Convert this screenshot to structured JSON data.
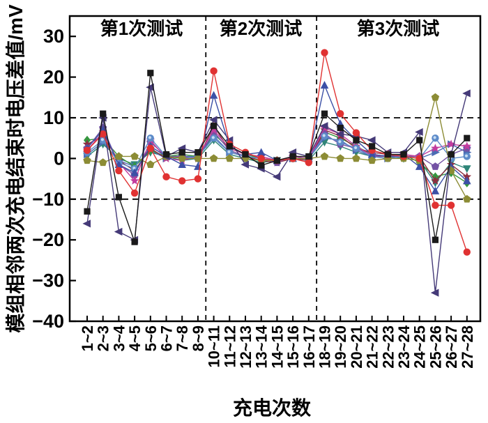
{
  "figure": {
    "background": "#ffffff",
    "frame_color": "#000000"
  },
  "chart_data": {
    "type": "line",
    "title": "",
    "xlabel": "充电次数",
    "ylabel": "模组相邻两次充电结束时电压差值/mV",
    "ylim": [
      -40,
      35
    ],
    "yticks": [
      30,
      20,
      10,
      0,
      -10,
      -20,
      -30,
      -40
    ],
    "grid": false,
    "legend_position": "none",
    "reference_lines_mv": [
      10,
      -10
    ],
    "categories": [
      "1~2",
      "2~3",
      "3~4",
      "4~5",
      "5~6",
      "6~7",
      "7~8",
      "8~9",
      "10~11",
      "11~12",
      "12~13",
      "13~14",
      "14~15",
      "15~16",
      "16~17",
      "18~19",
      "19~20",
      "20~21",
      "21~22",
      "22~23",
      "23~24",
      "24~25",
      "25~26",
      "26~27",
      "27~28"
    ],
    "region_labels": [
      {
        "label": "第1次测试",
        "start_index": 0,
        "end_index": 7
      },
      {
        "label": "第2次测试",
        "start_index": 8,
        "end_index": 14
      },
      {
        "label": "第3次测试",
        "start_index": 15,
        "end_index": 24
      }
    ],
    "series": [
      {
        "name": "teal-triangle-down",
        "marker": "triangle-down",
        "color": "#2f8578",
        "values": [
          0.5,
          3.5,
          0,
          -1.5,
          1.5,
          0.5,
          -0.5,
          0,
          4.5,
          1,
          0,
          -1,
          -0.5,
          0,
          -0.5,
          4,
          3,
          1.5,
          0.5,
          0.5,
          0,
          -0.5,
          -6,
          -1,
          -2.5
        ]
      },
      {
        "name": "royal-triangle-right",
        "marker": "triangle-right",
        "color": "#4c6cb3",
        "values": [
          1,
          4,
          -0.5,
          -2,
          2,
          0,
          0.5,
          0.5,
          5.5,
          1.5,
          0.5,
          -0.5,
          -0.5,
          0,
          0,
          5,
          4.5,
          2,
          0.5,
          0,
          0.5,
          0,
          1.5,
          3.5,
          1.5
        ]
      },
      {
        "name": "green-diamond",
        "marker": "diamond",
        "color": "#35963f",
        "values": [
          4.5,
          5,
          0.5,
          -2,
          2,
          0.5,
          1,
          0.5,
          6,
          2.5,
          1,
          0,
          -0.5,
          0.5,
          0,
          6.5,
          5,
          3,
          1,
          0.5,
          1,
          -1,
          -4.5,
          -3.5,
          -6
        ]
      },
      {
        "name": "wine-star",
        "marker": "star",
        "color": "#8e2e40",
        "values": [
          3.5,
          5.5,
          -0.5,
          -3,
          2.5,
          0,
          0.5,
          0,
          8,
          2,
          0.5,
          -0.5,
          -1,
          0,
          -0.5,
          7,
          5.5,
          2.5,
          1.5,
          1,
          0.5,
          0.5,
          -5.5,
          -1.5,
          -4.5
        ]
      },
      {
        "name": "purple-pentagon",
        "marker": "pentagon",
        "color": "#7452a4",
        "values": [
          2.5,
          7.5,
          -1.5,
          -4,
          4,
          0.5,
          0.5,
          0,
          6.5,
          2,
          0.5,
          0,
          -1,
          0.5,
          0,
          6,
          3.5,
          2.5,
          1,
          0.5,
          0.5,
          0.5,
          -2,
          1,
          2.5
        ]
      },
      {
        "name": "magenta-star",
        "marker": "star",
        "color": "#c23c9e",
        "values": [
          2,
          6.5,
          -1,
          -5.5,
          4.5,
          0,
          -0.5,
          0.5,
          7,
          2.5,
          1,
          0.5,
          -0.5,
          0.5,
          0,
          7.5,
          6,
          3,
          0.7,
          0.5,
          1,
          0.5,
          2.5,
          3.5,
          3
        ]
      },
      {
        "name": "sky-sphere",
        "marker": "sphere",
        "color": "#5d8bc9",
        "values": [
          1.5,
          4.5,
          -1,
          -2.5,
          5,
          0.5,
          0,
          0.5,
          5,
          1.5,
          0.5,
          0,
          -0.5,
          0,
          0,
          5.5,
          4,
          2.5,
          0.5,
          0,
          0.5,
          0,
          5,
          0,
          0.5
        ]
      },
      {
        "name": "blue-triangle-up",
        "marker": "triangle-up",
        "color": "#3c50a6",
        "values": [
          2.5,
          7,
          -1.5,
          -3.5,
          3,
          0.5,
          -1.5,
          -2,
          15.5,
          3,
          1,
          1.5,
          -0.5,
          0,
          0,
          18,
          8.5,
          4.5,
          1,
          0.5,
          1,
          -2,
          -8,
          -2,
          -5.5
        ]
      },
      {
        "name": "olive-pentagon",
        "marker": "pentagon",
        "color": "#8c8c35",
        "values": [
          -0.5,
          -1,
          0.5,
          0.5,
          -1.5,
          0.5,
          0,
          0,
          0,
          0,
          0,
          -0.5,
          -0.5,
          0,
          0,
          0.5,
          0,
          0,
          -0.5,
          0,
          0,
          -0.5,
          15,
          -3,
          -10
        ]
      },
      {
        "name": "navy-triangle-left",
        "marker": "triangle-left",
        "color": "#453a78",
        "values": [
          -16,
          10,
          -18,
          -20,
          17.5,
          0.5,
          2.5,
          1.5,
          9.5,
          4.5,
          -1.5,
          -2.5,
          -4.5,
          1.5,
          0.5,
          8,
          6,
          5.5,
          4.5,
          1.5,
          1.5,
          6.5,
          -33,
          1,
          16
        ]
      },
      {
        "name": "red-circle",
        "marker": "circle",
        "color": "#e03232",
        "values": [
          2,
          6,
          -3,
          -8.5,
          2.5,
          -4.5,
          -5.5,
          -5,
          21.5,
          3.5,
          1.5,
          0,
          -0.5,
          0,
          -1,
          26,
          11,
          6.3,
          2,
          1,
          0.5,
          0,
          -11.5,
          -11.5,
          -23
        ]
      },
      {
        "name": "black-square",
        "marker": "square",
        "color": "#1a1a1a",
        "values": [
          -13,
          11,
          -9.5,
          -20.5,
          21,
          1,
          1.5,
          1.5,
          8,
          3,
          1,
          -1.7,
          -0.5,
          0.5,
          0.5,
          11,
          7.5,
          4.5,
          3,
          1,
          1,
          4.5,
          -20,
          1,
          5
        ]
      }
    ]
  }
}
